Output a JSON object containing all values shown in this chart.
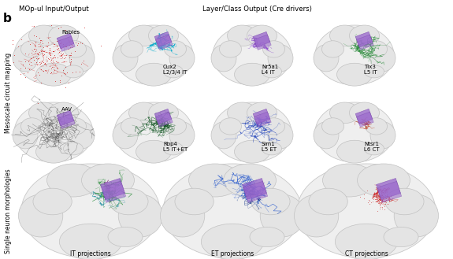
{
  "fig_width": 5.75,
  "fig_height": 3.29,
  "dpi": 100,
  "background_color": "#ffffff",
  "panel_label": "b",
  "title_left": "MOp-ul Input/Output",
  "title_center": "Layer/Class Output (Cre drivers)",
  "ylabel_top": "Mesoscale circuit mapping",
  "ylabel_bottom": "Single neuron morphologies",
  "neuron_colors": {
    "rabies": "#cc0000",
    "aav": "#444444",
    "cux2": "#00aacc",
    "nr5a1": "#8844cc",
    "tlx3": "#228833",
    "rbp4": "#115522",
    "sim1": "#2244bb",
    "ntsr1": "#bb3311",
    "IT_green": "#228833",
    "IT_teal": "#118899",
    "IT_purple": "#883388",
    "ET": "#2255cc",
    "ET_dark": "#113388",
    "CT": "#cc2222"
  },
  "purple_fill": "#9966cc",
  "purple_edge": "#7744aa",
  "brain_fill": "#efefef",
  "brain_edge": "#c8c8c8",
  "brain_lobe_fill": "#e4e4e4",
  "brain_lobe_edge": "#c0c0c0"
}
